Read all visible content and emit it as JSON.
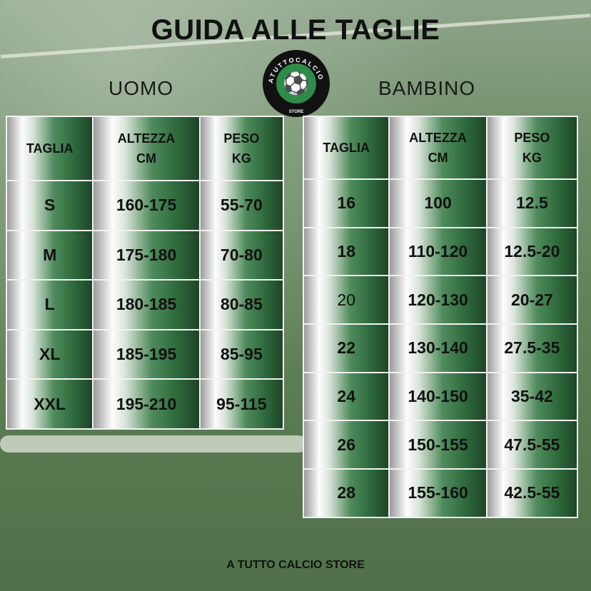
{
  "title": "GUIDA ALLE TAGLIE",
  "logo": {
    "text": "ATUTTOCALCIO",
    "subtext": "STORE"
  },
  "uomo": {
    "label": "UOMO",
    "headers": [
      "TAGLIA",
      "ALTEZZA CM",
      "PESO KG"
    ],
    "rows": [
      [
        "S",
        "160-175",
        "55-70"
      ],
      [
        "M",
        "175-180",
        "70-80"
      ],
      [
        "L",
        "180-185",
        "80-85"
      ],
      [
        "XL",
        "185-195",
        "85-95"
      ],
      [
        "XXL",
        "195-210",
        "95-115"
      ]
    ]
  },
  "bambino": {
    "label": "BAMBINO",
    "headers": [
      "TAGLIA",
      "ALTEZZA CM",
      "PESO KG"
    ],
    "rows": [
      [
        "16",
        "100",
        "12.5"
      ],
      [
        "18",
        "110-120",
        "12.5-20"
      ],
      [
        "20",
        "120-130",
        "20-27"
      ],
      [
        "22",
        "130-140",
        "27.5-35"
      ],
      [
        "24",
        "140-150",
        "35-42"
      ],
      [
        "26",
        "150-155",
        "47.5-55"
      ],
      [
        "28",
        "155-160",
        "42.5-55"
      ]
    ]
  },
  "footer": "A TUTTO CALCIO STORE"
}
